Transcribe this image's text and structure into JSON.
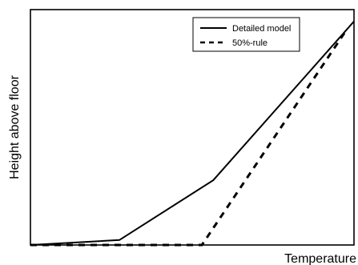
{
  "chart_data": {
    "type": "line",
    "title": "",
    "xlabel": "Temperature",
    "ylabel": "Height above floor",
    "xlim": [
      0,
      100
    ],
    "ylim": [
      0,
      100
    ],
    "grid": false,
    "x_ticks_shown": false,
    "y_ticks_shown": false,
    "legend_position": "top-right",
    "series": [
      {
        "name": "Detailed model",
        "style": "solid",
        "color": "#000000",
        "x": [
          0,
          27.5,
          56.5,
          100
        ],
        "y": [
          0,
          2.1,
          27.5,
          95
        ]
      },
      {
        "name": "50%-rule",
        "style": "dashed",
        "color": "#000000",
        "x": [
          0,
          53,
          98
        ],
        "y": [
          0,
          0,
          92
        ]
      }
    ]
  }
}
